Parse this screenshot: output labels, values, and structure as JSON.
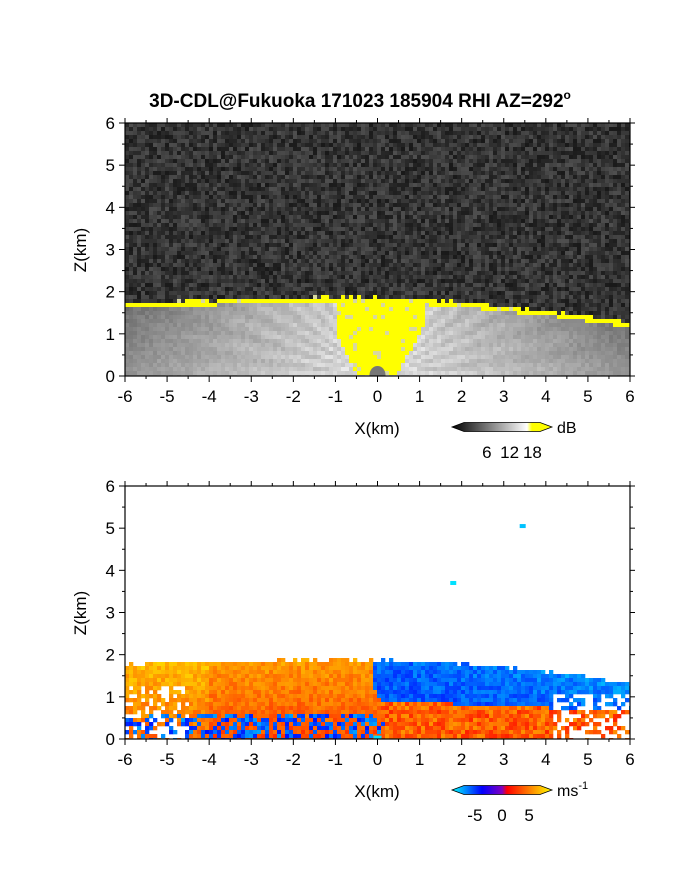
{
  "title": "3D-CDL@Fukuoka 171023 185904 RHI AZ=292",
  "title_superscript": "o",
  "chart_data": [
    {
      "type": "heatmap",
      "xlabel": "X(km)",
      "ylabel": "Z(km)",
      "xlim": [
        -6,
        6
      ],
      "ylim": [
        0,
        6
      ],
      "x_ticks": [
        "-6",
        "-5",
        "-4",
        "-3",
        "-2",
        "-1",
        "0",
        "1",
        "2",
        "3",
        "4",
        "5",
        "6"
      ],
      "y_ticks": [
        "0",
        "1",
        "2",
        "3",
        "4",
        "5",
        "6"
      ],
      "colorbar": {
        "unit": "dB",
        "ticks": [
          "6",
          "12",
          "18"
        ],
        "tick_values": [
          6,
          12,
          18
        ],
        "range": [
          0,
          20
        ],
        "colors": [
          "#000000",
          "#ffffff",
          "#ffff00"
        ]
      },
      "layer_top_km": [
        [
          -6,
          1.72
        ],
        [
          -5,
          1.75
        ],
        [
          -4,
          1.77
        ],
        [
          -3,
          1.79
        ],
        [
          -2,
          1.82
        ],
        [
          -1,
          1.84
        ],
        [
          0,
          1.83
        ],
        [
          1,
          1.79
        ],
        [
          2,
          1.73
        ],
        [
          3,
          1.62
        ],
        [
          4,
          1.52
        ],
        [
          5,
          1.38
        ],
        [
          6,
          1.25
        ]
      ],
      "saturated_core_x_km": [
        -1,
        1.1
      ]
    },
    {
      "type": "heatmap",
      "xlabel": "X(km)",
      "ylabel": "Z(km)",
      "xlim": [
        -6,
        6
      ],
      "ylim": [
        0,
        6
      ],
      "x_ticks": [
        "-6",
        "-5",
        "-4",
        "-3",
        "-2",
        "-1",
        "0",
        "1",
        "2",
        "3",
        "4",
        "5",
        "6"
      ],
      "y_ticks": [
        "0",
        "1",
        "2",
        "3",
        "4",
        "5",
        "6"
      ],
      "colorbar": {
        "unit": "ms",
        "unit_superscript": "-1",
        "ticks": [
          "-5",
          "0",
          "5"
        ],
        "tick_values": [
          -5,
          0,
          5
        ],
        "range": [
          -7,
          7
        ],
        "colors": [
          "#00ffff",
          "#0000ff",
          "#ff0000",
          "#ffff00"
        ]
      },
      "layer_top_km": [
        [
          -6,
          1.75
        ],
        [
          -5,
          1.78
        ],
        [
          -4,
          1.8
        ],
        [
          -3,
          1.82
        ],
        [
          -2,
          1.85
        ],
        [
          -1,
          1.86
        ],
        [
          0,
          1.85
        ],
        [
          1,
          1.82
        ],
        [
          2,
          1.76
        ],
        [
          3,
          1.68
        ],
        [
          4,
          1.58
        ],
        [
          5,
          1.45
        ],
        [
          6,
          1.3
        ]
      ],
      "shear_boundary_x_km": 0,
      "isolated_points": [
        [
          3.45,
          5.05,
          -6
        ],
        [
          1.8,
          3.7,
          -6.5
        ]
      ]
    }
  ]
}
